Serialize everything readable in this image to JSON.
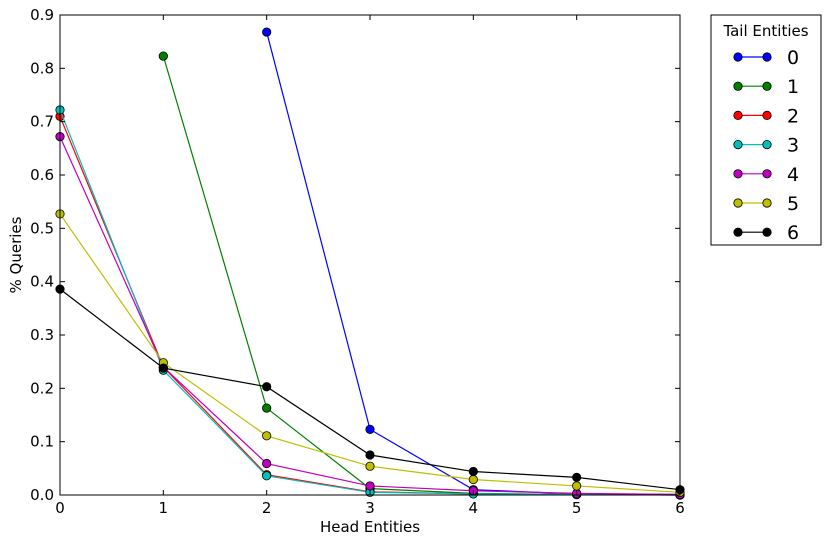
{
  "chart_data": {
    "type": "line",
    "title": "",
    "xlabel": "Head Entities",
    "ylabel": "% Queries",
    "xlim": [
      0,
      6
    ],
    "ylim": [
      0,
      0.9
    ],
    "xticks": [
      0,
      1,
      2,
      3,
      4,
      5,
      6
    ],
    "yticks": [
      0.0,
      0.1,
      0.2,
      0.3,
      0.4,
      0.5,
      0.6,
      0.7,
      0.8,
      0.9
    ],
    "xtick_labels": [
      "0",
      "1",
      "2",
      "3",
      "4",
      "5",
      "6"
    ],
    "ytick_labels": [
      "0.0",
      "0.1",
      "0.2",
      "0.3",
      "0.4",
      "0.5",
      "0.6",
      "0.7",
      "0.8",
      "0.9"
    ],
    "grid": false,
    "legend": {
      "title": "Tail Entities",
      "placement": "outside-top-right"
    },
    "series": [
      {
        "name": "0",
        "color": "#0000ff",
        "x": [
          2,
          3,
          4,
          5,
          6
        ],
        "values": [
          0.868,
          0.123,
          0.01,
          0.002,
          0.001
        ]
      },
      {
        "name": "1",
        "color": "#008000",
        "x": [
          1,
          2,
          3,
          4,
          5,
          6
        ],
        "values": [
          0.823,
          0.163,
          0.012,
          0.003,
          0.001,
          0.0
        ]
      },
      {
        "name": "2",
        "color": "#ff0000",
        "x": [
          0,
          1,
          2,
          3,
          4,
          5,
          6
        ],
        "values": [
          0.71,
          0.24,
          0.038,
          0.006,
          0.002,
          0.001,
          0.0
        ]
      },
      {
        "name": "3",
        "color": "#00bfbf",
        "x": [
          0,
          1,
          2,
          3,
          4,
          5,
          6
        ],
        "values": [
          0.722,
          0.234,
          0.036,
          0.005,
          0.002,
          0.001,
          0.0
        ]
      },
      {
        "name": "4",
        "color": "#bf00bf",
        "x": [
          0,
          1,
          2,
          3,
          4,
          5,
          6
        ],
        "values": [
          0.672,
          0.24,
          0.059,
          0.017,
          0.008,
          0.003,
          0.001
        ]
      },
      {
        "name": "5",
        "color": "#bfbf00",
        "x": [
          0,
          1,
          2,
          3,
          4,
          5,
          6
        ],
        "values": [
          0.527,
          0.248,
          0.111,
          0.054,
          0.029,
          0.017,
          0.005
        ]
      },
      {
        "name": "6",
        "color": "#000000",
        "x": [
          0,
          1,
          2,
          3,
          4,
          5,
          6
        ],
        "values": [
          0.386,
          0.238,
          0.203,
          0.075,
          0.044,
          0.033,
          0.01
        ]
      }
    ]
  }
}
